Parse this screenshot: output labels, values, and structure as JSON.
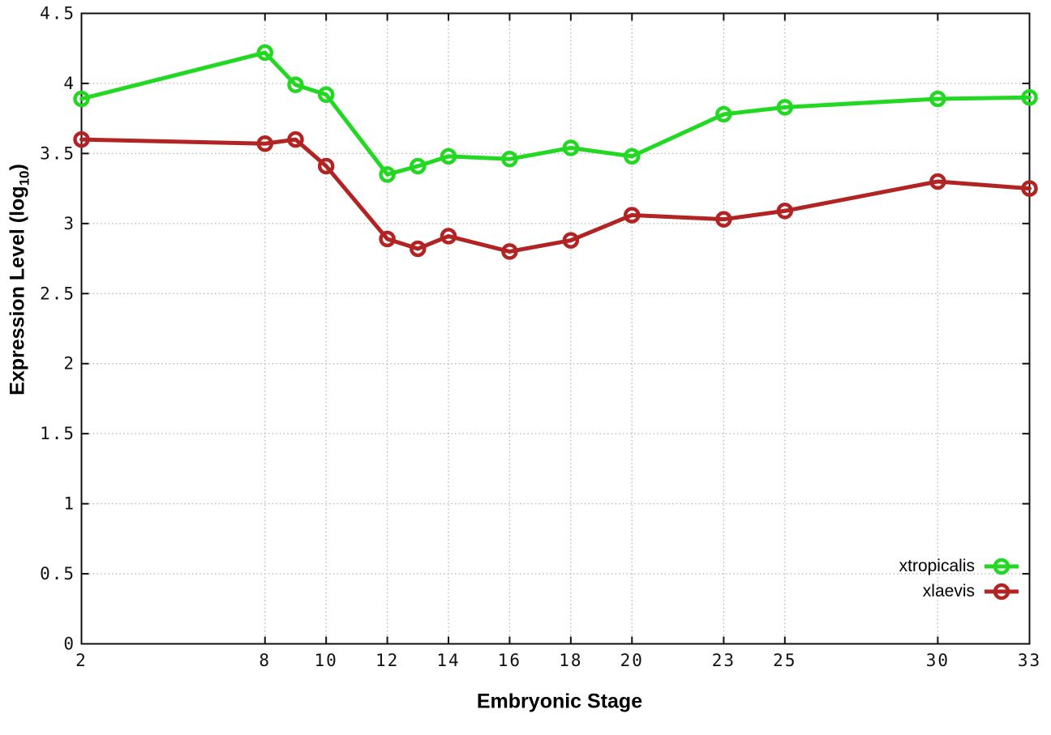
{
  "chart_data": {
    "type": "line",
    "xlabel": "Embryonic Stage",
    "ylabel": {
      "prefix": "Expression Level (log",
      "sub": "10",
      "suffix": ")"
    },
    "xlim": [
      2,
      33
    ],
    "ylim": [
      0,
      4.5
    ],
    "grid": true,
    "legend_position": "inside bottom-right",
    "x": [
      2,
      8,
      9,
      10,
      12,
      13,
      14,
      16,
      18,
      20,
      23,
      25,
      30,
      33
    ],
    "x_ticks": [
      {
        "v": 2,
        "label": "2"
      },
      {
        "v": 8,
        "label": "8"
      },
      {
        "v": 10,
        "label": "10"
      },
      {
        "v": 12,
        "label": "12"
      },
      {
        "v": 14,
        "label": "14"
      },
      {
        "v": 16,
        "label": "16"
      },
      {
        "v": 18,
        "label": "18"
      },
      {
        "v": 20,
        "label": "20"
      },
      {
        "v": 23,
        "label": "23"
      },
      {
        "v": 25,
        "label": "25"
      },
      {
        "v": 30,
        "label": "30"
      },
      {
        "v": 33,
        "label": "33"
      }
    ],
    "y_ticks": [
      {
        "v": 0,
        "label": "0"
      },
      {
        "v": 0.5,
        "label": "0.5"
      },
      {
        "v": 1,
        "label": "1"
      },
      {
        "v": 1.5,
        "label": "1.5"
      },
      {
        "v": 2,
        "label": "2"
      },
      {
        "v": 2.5,
        "label": "2.5"
      },
      {
        "v": 3,
        "label": "3"
      },
      {
        "v": 3.5,
        "label": "3.5"
      },
      {
        "v": 4,
        "label": "4"
      },
      {
        "v": 4.5,
        "label": "4.5"
      }
    ],
    "series": [
      {
        "name": "xtropicalis",
        "color": "#22d822",
        "values": [
          3.89,
          4.22,
          3.99,
          3.92,
          3.35,
          3.41,
          3.48,
          3.46,
          3.54,
          3.48,
          3.78,
          3.83,
          3.89,
          3.9
        ]
      },
      {
        "name": "xlaevis",
        "color": "#b22424",
        "values": [
          3.6,
          3.57,
          3.6,
          3.41,
          2.89,
          2.82,
          2.91,
          2.8,
          2.88,
          3.06,
          3.03,
          3.09,
          3.3,
          3.25
        ]
      }
    ]
  },
  "colors": {
    "background": "#ffffff",
    "axis": "#111111",
    "grid": "#b9b9b9",
    "text": "#000000"
  }
}
